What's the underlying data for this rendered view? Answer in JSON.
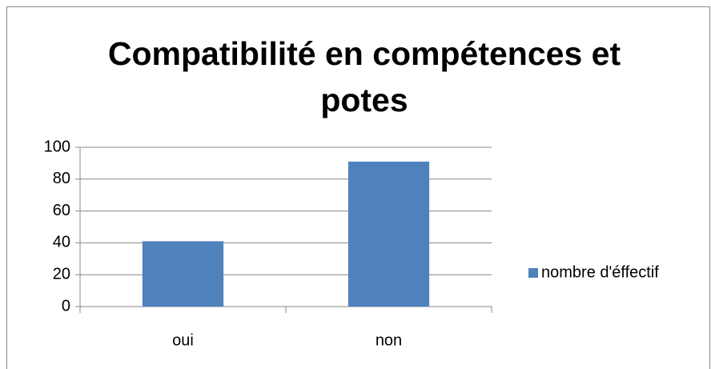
{
  "chart_data": {
    "type": "bar",
    "title": "Compatibilité en compétences et potes",
    "categories": [
      "oui",
      "non"
    ],
    "series": [
      {
        "name": "nombre d'éffectif",
        "color": "#4f81bd",
        "values": [
          41,
          91
        ]
      }
    ],
    "ylim": [
      0,
      100
    ],
    "yticks": [
      0,
      20,
      40,
      60,
      80,
      100
    ],
    "grid": true,
    "legend": "right"
  }
}
